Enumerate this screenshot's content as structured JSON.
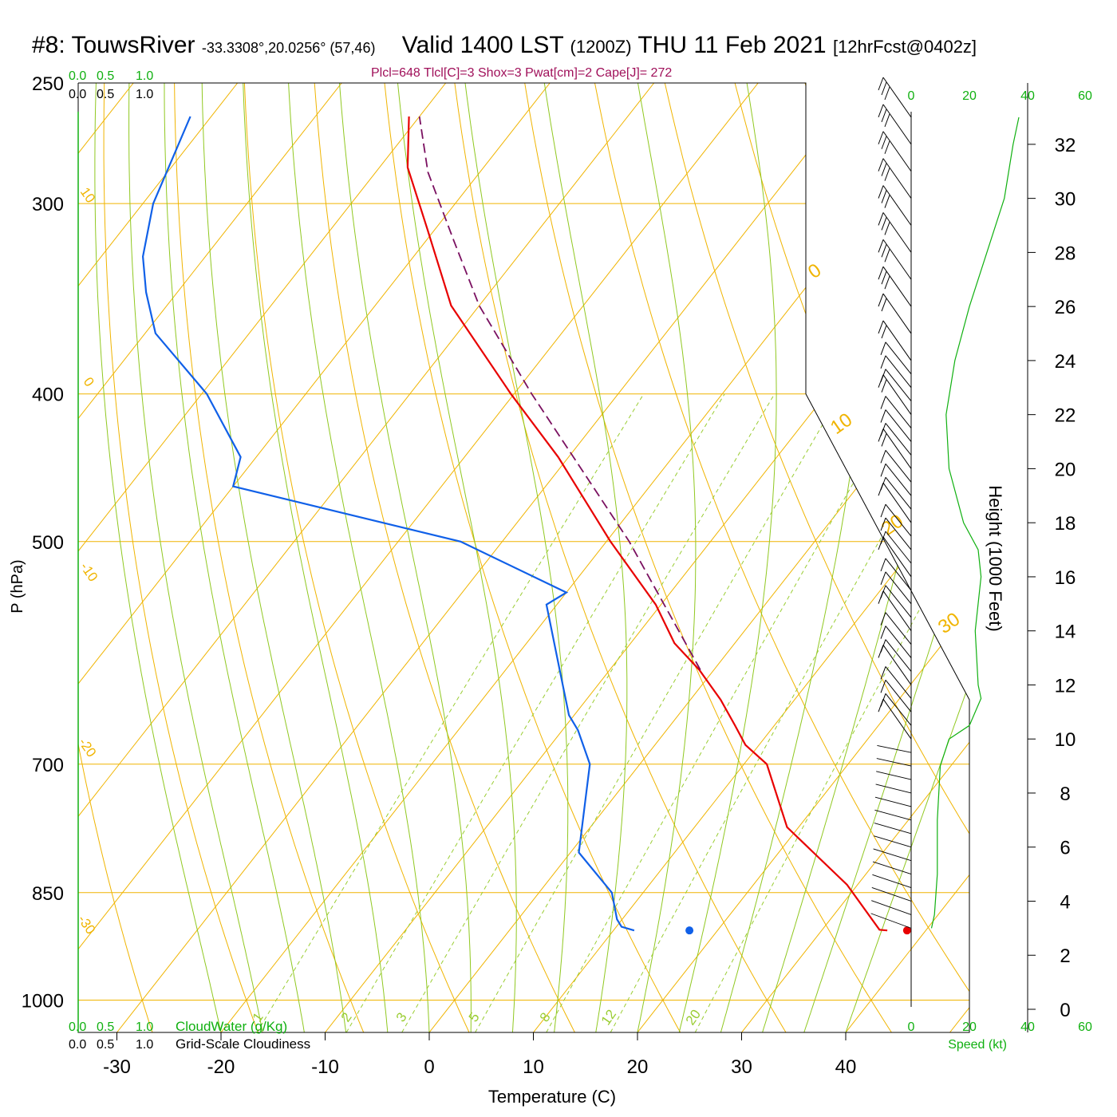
{
  "header": {
    "station": "#8: TouwsRiver",
    "coords": "-33.3308°,20.0256° (57,46)",
    "valid_label": "Valid 1400 LST",
    "utc": "(1200Z)",
    "date": "THU 11 Feb 2021",
    "forecast": "[12hrFcst@0402z]"
  },
  "params_text": "Plcl=648 Tlcl[C]=3 Shox=3 Pwat[cm]=2 Cape[J]= 272",
  "colors": {
    "isotherm": "#f0b400",
    "dry_adiabat": "#f0b400",
    "moist_adiabat": "#90c820",
    "mixing_ratio": "#9acd32",
    "temperature": "#e80000",
    "dewpoint": "#1060e8",
    "parcel": "#7a1060",
    "green_text": "#10b010",
    "params": "#a0105a"
  },
  "labels": {
    "x_axis_title": "Temperature (C)",
    "y_axis_title": "P (hPa)",
    "right_axis_title": "Height (1000 Feet)",
    "cloud_water_label": "CloudWater (g/Kg)",
    "cloudiness_label": "Grid-Scale Cloudiness",
    "speed_label": "Speed (kt)"
  },
  "scales": {
    "top_green": [
      "0.0",
      "0.5",
      "1.0"
    ],
    "top_black": [
      "0.0",
      "0.5",
      "1.0"
    ],
    "bottom_green": [
      "0.0",
      "0.5",
      "1.0"
    ],
    "bottom_black": [
      "0.0",
      "0.5",
      "1.0"
    ],
    "speed_ticks": [
      "0",
      "20",
      "40",
      "60"
    ]
  },
  "chart_data": {
    "type": "line",
    "title": "Valid 1400 LST (1200Z) THU 11 Feb 2021",
    "xlabel": "Temperature (C)",
    "ylabel": "P (hPa)",
    "xlim": [
      -34,
      36
    ],
    "ylim": [
      1050,
      250
    ],
    "x_ticks": [
      -30,
      -20,
      -10,
      0,
      10,
      20,
      30,
      40
    ],
    "pressure_ticks": [
      250,
      300,
      400,
      500,
      700,
      850,
      1000
    ],
    "height_ticks_kft": [
      0,
      2,
      4,
      6,
      8,
      10,
      12,
      14,
      16,
      18,
      20,
      22,
      24,
      26,
      28,
      30,
      32
    ],
    "dry_adiabat_labels": [
      "10",
      "0",
      "-10",
      "-20",
      "-30"
    ],
    "moist_adiabat_labels": [
      "0",
      "10",
      "20",
      "30"
    ],
    "mixing_ratio_labels": [
      "1",
      "2",
      "3",
      "5",
      "8",
      "12",
      "20"
    ],
    "series": [
      {
        "name": "Temperature",
        "points": [
          [
            36.3,
            900
          ],
          [
            35.5,
            899
          ],
          [
            29.0,
            840
          ],
          [
            18.9,
            770
          ],
          [
            12.2,
            700
          ],
          [
            8.7,
            680
          ],
          [
            6.2,
            660
          ],
          [
            2.9,
            635
          ],
          [
            -1.4,
            607
          ],
          [
            -5.8,
            583
          ],
          [
            -10.5,
            550
          ],
          [
            -19.6,
            500
          ],
          [
            -31.0,
            440
          ],
          [
            -40.3,
            400
          ],
          [
            -52.7,
            350
          ],
          [
            -60.7,
            312
          ],
          [
            -67.3,
            284
          ],
          [
            -71.0,
            263
          ]
        ]
      },
      {
        "name": "Dewpoint",
        "points": [
          [
            12.0,
            900
          ],
          [
            10.5,
            895
          ],
          [
            9.5,
            885
          ],
          [
            7.0,
            850
          ],
          [
            0.8,
            800
          ],
          [
            -4.8,
            700
          ],
          [
            -8.5,
            665
          ],
          [
            -10.5,
            650
          ],
          [
            -14.5,
            610
          ],
          [
            -21.0,
            550
          ],
          [
            -20.0,
            540
          ],
          [
            -34.0,
            500
          ],
          [
            -60.0,
            460
          ],
          [
            -61.5,
            440
          ],
          [
            -69.5,
            400
          ],
          [
            -79.0,
            365
          ],
          [
            -83.0,
            343
          ],
          [
            -86.0,
            325
          ],
          [
            -89.0,
            300
          ],
          [
            -92.0,
            263
          ]
        ]
      },
      {
        "name": "Parcel",
        "points": [
          [
            -1.3,
            607
          ],
          [
            -17.8,
            500
          ],
          [
            -38.3,
            400
          ],
          [
            -50.0,
            350
          ],
          [
            -57.4,
            317
          ],
          [
            -65.0,
            286
          ],
          [
            -70.0,
            263
          ]
        ]
      }
    ],
    "surface": {
      "temperature": 38.2,
      "dewpoint": 17.3,
      "pressure": 900
    },
    "wind_speed_profile_kt": [
      {
        "height_kft": 3,
        "speed": 7
      },
      {
        "height_kft": 3.5,
        "speed": 8
      },
      {
        "height_kft": 5,
        "speed": 9
      },
      {
        "height_kft": 7,
        "speed": 9
      },
      {
        "height_kft": 9,
        "speed": 10
      },
      {
        "height_kft": 10,
        "speed": 13
      },
      {
        "height_kft": 10.5,
        "speed": 20
      },
      {
        "height_kft": 11.5,
        "speed": 24
      },
      {
        "height_kft": 12,
        "speed": 23
      },
      {
        "height_kft": 14,
        "speed": 22
      },
      {
        "height_kft": 16,
        "speed": 24
      },
      {
        "height_kft": 17,
        "speed": 23
      },
      {
        "height_kft": 18,
        "speed": 18
      },
      {
        "height_kft": 20,
        "speed": 13
      },
      {
        "height_kft": 22,
        "speed": 12
      },
      {
        "height_kft": 24,
        "speed": 15
      },
      {
        "height_kft": 26,
        "speed": 20
      },
      {
        "height_kft": 28,
        "speed": 26
      },
      {
        "height_kft": 30,
        "speed": 32
      },
      {
        "height_kft": 32,
        "speed": 35
      },
      {
        "height_kft": 33,
        "speed": 37
      }
    ]
  }
}
